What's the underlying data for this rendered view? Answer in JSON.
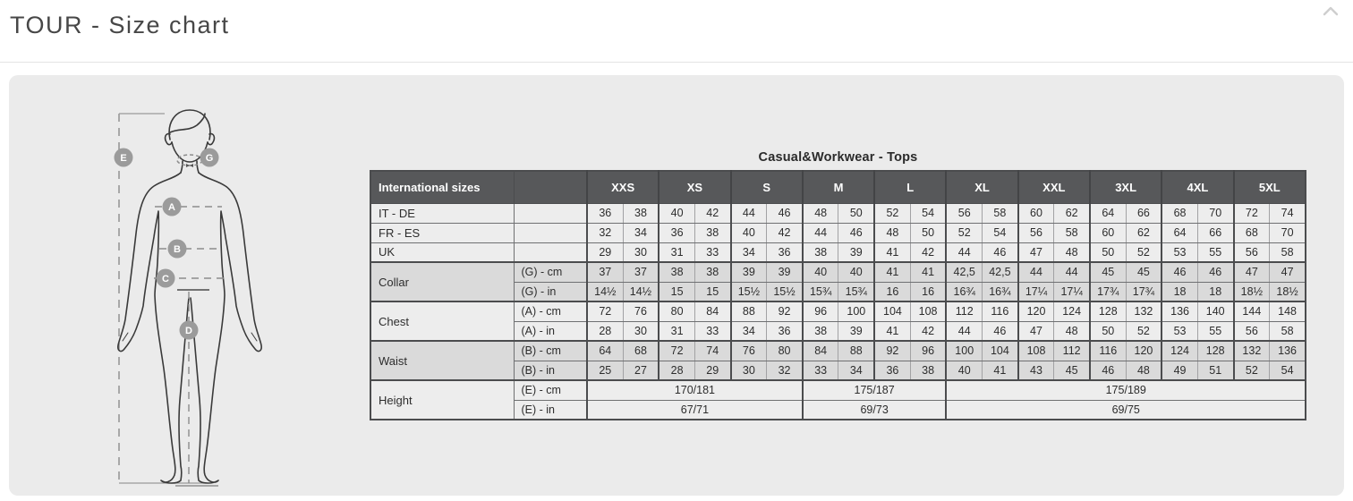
{
  "page": {
    "title": "TOUR - Size chart"
  },
  "top_bar": {
    "scroll_icon": "chevron-up-icon"
  },
  "colors": {
    "panel_bg": "#ebebeb",
    "table_header_bg": "#57585a",
    "row_light": "#ededed",
    "row_dark": "#dadada",
    "label_badge": "#9b9b9b",
    "figure_stroke": "#3a3a3a"
  },
  "figure": {
    "description": "body-measurement-diagram",
    "labels": {
      "height": "E",
      "collar": "G",
      "chest": "A",
      "waist": "B",
      "hip": "C",
      "inseam": "D"
    }
  },
  "size_chart": {
    "title": "Casual&Workwear - Tops",
    "header": {
      "col1": "International sizes",
      "sizes": [
        "XXS",
        "XS",
        "S",
        "M",
        "L",
        "XL",
        "XXL",
        "3XL",
        "4XL",
        "5XL"
      ]
    },
    "rows": [
      {
        "label": "IT - DE",
        "label_rowspan": 1,
        "sub": "",
        "shade": "light",
        "group_start": false,
        "cells": [
          "36",
          "38",
          "40",
          "42",
          "44",
          "46",
          "48",
          "50",
          "52",
          "54",
          "56",
          "58",
          "60",
          "62",
          "64",
          "66",
          "68",
          "70",
          "72",
          "74"
        ]
      },
      {
        "label": "FR - ES",
        "label_rowspan": 1,
        "sub": "",
        "shade": "light",
        "group_start": false,
        "cells": [
          "32",
          "34",
          "36",
          "38",
          "40",
          "42",
          "44",
          "46",
          "48",
          "50",
          "52",
          "54",
          "56",
          "58",
          "60",
          "62",
          "64",
          "66",
          "68",
          "70"
        ]
      },
      {
        "label": "UK",
        "label_rowspan": 1,
        "sub": "",
        "shade": "light",
        "group_start": false,
        "cells": [
          "29",
          "30",
          "31",
          "33",
          "34",
          "36",
          "38",
          "39",
          "41",
          "42",
          "44",
          "46",
          "47",
          "48",
          "50",
          "52",
          "53",
          "55",
          "56",
          "58"
        ]
      },
      {
        "label": "Collar",
        "label_rowspan": 2,
        "sub": "(G) - cm",
        "shade": "dark",
        "group_start": true,
        "cells": [
          "37",
          "37",
          "38",
          "38",
          "39",
          "39",
          "40",
          "40",
          "41",
          "41",
          "42,5",
          "42,5",
          "44",
          "44",
          "45",
          "45",
          "46",
          "46",
          "47",
          "47"
        ]
      },
      {
        "label": null,
        "sub": "(G) - in",
        "shade": "dark",
        "group_start": false,
        "cells": [
          "14½",
          "14½",
          "15",
          "15",
          "15½",
          "15½",
          "15¾",
          "15¾",
          "16",
          "16",
          "16¾",
          "16¾",
          "17¼",
          "17¼",
          "17¾",
          "17¾",
          "18",
          "18",
          "18½",
          "18½"
        ]
      },
      {
        "label": "Chest",
        "label_rowspan": 2,
        "sub": "(A) - cm",
        "shade": "light",
        "group_start": true,
        "cells": [
          "72",
          "76",
          "80",
          "84",
          "88",
          "92",
          "96",
          "100",
          "104",
          "108",
          "112",
          "116",
          "120",
          "124",
          "128",
          "132",
          "136",
          "140",
          "144",
          "148"
        ]
      },
      {
        "label": null,
        "sub": "(A) - in",
        "shade": "light",
        "group_start": false,
        "cells": [
          "28",
          "30",
          "31",
          "33",
          "34",
          "36",
          "38",
          "39",
          "41",
          "42",
          "44",
          "46",
          "47",
          "48",
          "50",
          "52",
          "53",
          "55",
          "56",
          "58"
        ]
      },
      {
        "label": "Waist",
        "label_rowspan": 2,
        "sub": "(B) - cm",
        "shade": "dark",
        "group_start": true,
        "cells": [
          "64",
          "68",
          "72",
          "74",
          "76",
          "80",
          "84",
          "88",
          "92",
          "96",
          "100",
          "104",
          "108",
          "112",
          "116",
          "120",
          "124",
          "128",
          "132",
          "136"
        ]
      },
      {
        "label": null,
        "sub": "(B) - in",
        "shade": "dark",
        "group_start": false,
        "cells": [
          "25",
          "27",
          "28",
          "29",
          "30",
          "32",
          "33",
          "34",
          "36",
          "38",
          "40",
          "41",
          "43",
          "45",
          "46",
          "48",
          "49",
          "51",
          "52",
          "54"
        ]
      },
      {
        "label": "Height",
        "label_rowspan": 2,
        "sub": "(E) - cm",
        "shade": "light",
        "group_start": true,
        "cells": [
          {
            "text": "170/181",
            "colspan": 6
          },
          {
            "text": "175/187",
            "colspan": 4
          },
          {
            "text": "175/189",
            "colspan": 10
          }
        ]
      },
      {
        "label": null,
        "sub": "(E) - in",
        "shade": "light",
        "group_start": false,
        "cells": [
          {
            "text": "67/71",
            "colspan": 6
          },
          {
            "text": "69/73",
            "colspan": 4
          },
          {
            "text": "69/75",
            "colspan": 10
          }
        ]
      }
    ]
  }
}
